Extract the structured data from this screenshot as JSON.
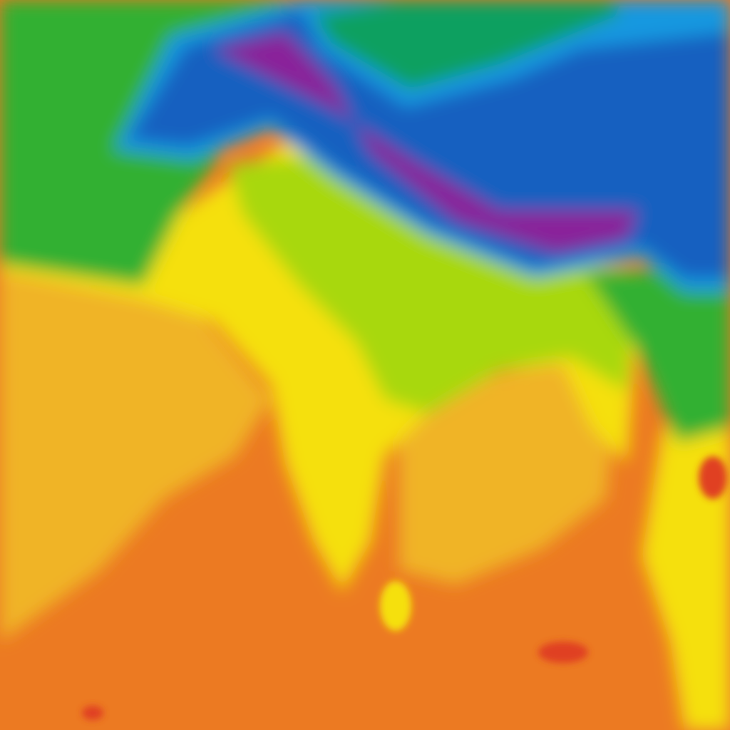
{
  "map": {
    "type": "temperature-heatmap",
    "region": "South Asia",
    "colors": {
      "ocean_warm": "#ec7a22",
      "ocean_mild": "#f0b425",
      "land_yellow": "#f5e010",
      "land_yellowgreen": "#a8d810",
      "land_green": "#30b030",
      "basin_teal": "#10a060",
      "plateau_blue": "#1560c0",
      "plateau_lightblue": "#1898e0",
      "mountain_purple": "#8a209a",
      "hot_red": "#e04020"
    }
  }
}
